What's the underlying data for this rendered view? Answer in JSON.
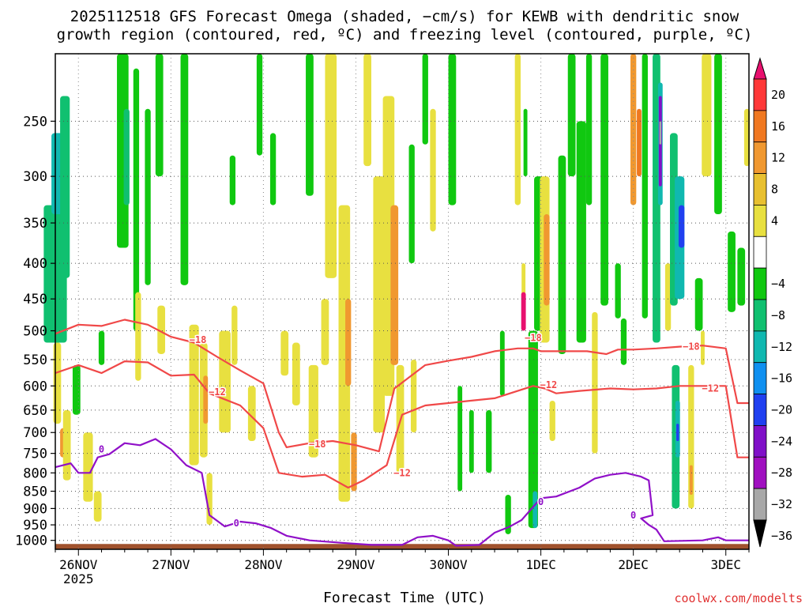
{
  "title": {
    "line1": "2025112518 GFS Forecast Omega (shaded, −cm/s) for KEWB with dendritic snow",
    "line2": "growth region (contoured, red, ºC) and freezing level (contoured, purple, ºC)"
  },
  "xlabel": "Forecast Time (UTC)",
  "credit": "coolwx.com/modelts",
  "chart_data": {
    "type": "heatmap",
    "x_unit": "forecast hours from 2025-11-25 18Z",
    "x_range": [
      0,
      180
    ],
    "y_unit": "hPa",
    "y_range": [
      1030,
      200
    ],
    "y_ticks": [
      250,
      300,
      350,
      400,
      450,
      500,
      550,
      600,
      650,
      700,
      750,
      800,
      850,
      900,
      950,
      1000
    ],
    "x_ticks": [
      {
        "hour": 6,
        "label": "26NOV",
        "sub": "2025"
      },
      {
        "hour": 30,
        "label": "27NOV",
        "sub": ""
      },
      {
        "hour": 54,
        "label": "28NOV",
        "sub": ""
      },
      {
        "hour": 78,
        "label": "29NOV",
        "sub": ""
      },
      {
        "hour": 102,
        "label": "30NOV",
        "sub": ""
      },
      {
        "hour": 126,
        "label": "1DEC",
        "sub": ""
      },
      {
        "hour": 150,
        "label": "2DEC",
        "sub": ""
      },
      {
        "hour": 174,
        "label": "3DEC",
        "sub": ""
      }
    ],
    "colorbar": {
      "labels": [
        "20",
        "16",
        "12",
        "8",
        "4",
        "−4",
        "−8",
        "−12",
        "−16",
        "−20",
        "−24",
        "−28",
        "−32",
        "−36"
      ],
      "colors": [
        "#e8106e",
        "#ff3838",
        "#f07820",
        "#f09830",
        "#e8c030",
        "#e8e040",
        "#ffffff",
        "#10c810",
        "#10c070",
        "#10b8b0",
        "#1090f0",
        "#2040f0",
        "#8010c8",
        "#a010c0",
        "#a8a8a8",
        "#000000"
      ]
    },
    "omega_cells": [
      {
        "h": 0.0,
        "w": 6,
        "p1": 330,
        "p2": 520,
        "v": -10
      },
      {
        "h": 0.5,
        "w": 3,
        "p1": 260,
        "p2": 340,
        "v": -14
      },
      {
        "h": 2.5,
        "w": 2.5,
        "p1": 230,
        "p2": 420,
        "v": -11
      },
      {
        "h": 0.5,
        "w": 2,
        "p1": 520,
        "p2": 680,
        "v": 5
      },
      {
        "h": 2.0,
        "w": 1.5,
        "p1": 690,
        "p2": 760,
        "v": 10
      },
      {
        "h": 3.0,
        "w": 2,
        "p1": 650,
        "p2": 820,
        "v": 5
      },
      {
        "h": 5.5,
        "w": 2,
        "p1": 560,
        "p2": 660,
        "v": -6
      },
      {
        "h": 8.5,
        "w": 2.5,
        "p1": 700,
        "p2": 880,
        "v": 5
      },
      {
        "h": 12.0,
        "w": 1.5,
        "p1": 500,
        "p2": 560,
        "v": -6
      },
      {
        "h": 11.0,
        "w": 2,
        "p1": 850,
        "p2": 940,
        "v": 5
      },
      {
        "h": 17.5,
        "w": 3,
        "p1": 200,
        "p2": 380,
        "v": -7
      },
      {
        "h": 18.5,
        "w": 1.5,
        "p1": 240,
        "p2": 330,
        "v": -11
      },
      {
        "h": 21.0,
        "w": 1.5,
        "p1": 210,
        "p2": 500,
        "v": -6
      },
      {
        "h": 21.5,
        "w": 1.5,
        "p1": 440,
        "p2": 590,
        "v": 5
      },
      {
        "h": 24.0,
        "w": 1.5,
        "p1": 240,
        "p2": 430,
        "v": -6
      },
      {
        "h": 27.0,
        "w": 2,
        "p1": 200,
        "p2": 300,
        "v": -6
      },
      {
        "h": 27.5,
        "w": 2,
        "p1": 460,
        "p2": 540,
        "v": 5
      },
      {
        "h": 33.5,
        "w": 2,
        "p1": 200,
        "p2": 430,
        "v": -6
      },
      {
        "h": 36.0,
        "w": 2.5,
        "p1": 490,
        "p2": 780,
        "v": 5
      },
      {
        "h": 38.5,
        "w": 2,
        "p1": 520,
        "p2": 760,
        "v": 6
      },
      {
        "h": 39.0,
        "w": 1.2,
        "p1": 580,
        "p2": 680,
        "v": 10
      },
      {
        "h": 40.0,
        "w": 1.5,
        "p1": 800,
        "p2": 950,
        "v": 5
      },
      {
        "h": 44.0,
        "w": 3,
        "p1": 500,
        "p2": 700,
        "v": 5
      },
      {
        "h": 46.5,
        "w": 1.5,
        "p1": 460,
        "p2": 560,
        "v": 5
      },
      {
        "h": 46.0,
        "w": 1.5,
        "p1": 280,
        "p2": 330,
        "v": -6
      },
      {
        "h": 51.0,
        "w": 2,
        "p1": 600,
        "p2": 720,
        "v": 5
      },
      {
        "h": 53.0,
        "w": 1.5,
        "p1": 200,
        "p2": 280,
        "v": -6
      },
      {
        "h": 56.5,
        "w": 1.5,
        "p1": 260,
        "p2": 330,
        "v": -6
      },
      {
        "h": 59.5,
        "w": 2,
        "p1": 500,
        "p2": 580,
        "v": 5
      },
      {
        "h": 62.5,
        "w": 2,
        "p1": 520,
        "p2": 640,
        "v": 5
      },
      {
        "h": 66.0,
        "w": 2,
        "p1": 200,
        "p2": 320,
        "v": -7
      },
      {
        "h": 67.0,
        "w": 2.5,
        "p1": 560,
        "p2": 760,
        "v": 5
      },
      {
        "h": 70.0,
        "w": 2,
        "p1": 450,
        "p2": 560,
        "v": 5
      },
      {
        "h": 71.5,
        "w": 3,
        "p1": 200,
        "p2": 420,
        "v": 5
      },
      {
        "h": 75.0,
        "w": 3,
        "p1": 330,
        "p2": 880,
        "v": 5
      },
      {
        "h": 76.0,
        "w": 1.5,
        "p1": 450,
        "p2": 600,
        "v": 9
      },
      {
        "h": 77.5,
        "w": 1.5,
        "p1": 700,
        "p2": 850,
        "v": 9
      },
      {
        "h": 81.0,
        "w": 2,
        "p1": 200,
        "p2": 290,
        "v": 5
      },
      {
        "h": 84.0,
        "w": 3,
        "p1": 300,
        "p2": 700,
        "v": 5
      },
      {
        "h": 86.5,
        "w": 3,
        "p1": 230,
        "p2": 620,
        "v": 6
      },
      {
        "h": 88.0,
        "w": 2,
        "p1": 330,
        "p2": 560,
        "v": 10
      },
      {
        "h": 89.5,
        "w": 2,
        "p1": 560,
        "p2": 800,
        "v": 6
      },
      {
        "h": 92.5,
        "w": 1.5,
        "p1": 270,
        "p2": 400,
        "v": -6
      },
      {
        "h": 93.0,
        "w": 1.5,
        "p1": 550,
        "p2": 700,
        "v": 5
      },
      {
        "h": 96.0,
        "w": 1.5,
        "p1": 200,
        "p2": 270,
        "v": -6
      },
      {
        "h": 98.0,
        "w": 1.5,
        "p1": 240,
        "p2": 360,
        "v": 5
      },
      {
        "h": 103.0,
        "w": 2,
        "p1": 200,
        "p2": 330,
        "v": -6
      },
      {
        "h": 105.0,
        "w": 1.2,
        "p1": 600,
        "p2": 850,
        "v": -6
      },
      {
        "h": 108.0,
        "w": 1.2,
        "p1": 650,
        "p2": 800,
        "v": -6
      },
      {
        "h": 112.5,
        "w": 1.5,
        "p1": 650,
        "p2": 800,
        "v": -6
      },
      {
        "h": 116.0,
        "w": 1.2,
        "p1": 500,
        "p2": 620,
        "v": -6
      },
      {
        "h": 117.5,
        "w": 1.5,
        "p1": 860,
        "p2": 980,
        "v": -6
      },
      {
        "h": 120.0,
        "w": 1.5,
        "p1": 200,
        "p2": 330,
        "v": 5
      },
      {
        "h": 121.5,
        "w": 1,
        "p1": 400,
        "p2": 480,
        "v": 5
      },
      {
        "h": 121.5,
        "w": 1.2,
        "p1": 440,
        "p2": 500,
        "v": 20
      },
      {
        "h": 122.0,
        "w": 1,
        "p1": 240,
        "p2": 300,
        "v": -6
      },
      {
        "h": 124.0,
        "w": 2.5,
        "p1": 500,
        "p2": 960,
        "v": -7
      },
      {
        "h": 124.5,
        "w": 1.2,
        "p1": 850,
        "p2": 960,
        "v": -12
      },
      {
        "h": 125.5,
        "w": 2.5,
        "p1": 300,
        "p2": 500,
        "v": -6
      },
      {
        "h": 127.0,
        "w": 2.5,
        "p1": 300,
        "p2": 520,
        "v": 6
      },
      {
        "h": 127.5,
        "w": 1.5,
        "p1": 340,
        "p2": 460,
        "v": 11
      },
      {
        "h": 129.0,
        "w": 1.5,
        "p1": 630,
        "p2": 720,
        "v": 5
      },
      {
        "h": 131.5,
        "w": 2,
        "p1": 280,
        "p2": 540,
        "v": -7
      },
      {
        "h": 134.0,
        "w": 2,
        "p1": 200,
        "p2": 300,
        "v": -6
      },
      {
        "h": 136.5,
        "w": 2.5,
        "p1": 250,
        "p2": 520,
        "v": -7
      },
      {
        "h": 138.5,
        "w": 1.5,
        "p1": 200,
        "p2": 330,
        "v": -6
      },
      {
        "h": 140.0,
        "w": 1.5,
        "p1": 470,
        "p2": 750,
        "v": 5
      },
      {
        "h": 142.5,
        "w": 2,
        "p1": 200,
        "p2": 460,
        "v": -7
      },
      {
        "h": 146.0,
        "w": 1.5,
        "p1": 400,
        "p2": 480,
        "v": -6
      },
      {
        "h": 147.5,
        "w": 1.5,
        "p1": 480,
        "p2": 560,
        "v": -6
      },
      {
        "h": 150.0,
        "w": 1.5,
        "p1": 200,
        "p2": 330,
        "v": 9
      },
      {
        "h": 151.5,
        "w": 1.2,
        "p1": 240,
        "p2": 300,
        "v": 12
      },
      {
        "h": 153.0,
        "w": 1.5,
        "p1": 200,
        "p2": 480,
        "v": -7
      },
      {
        "h": 156.0,
        "w": 2,
        "p1": 200,
        "p2": 520,
        "v": -9
      },
      {
        "h": 157.0,
        "w": 1.2,
        "p1": 220,
        "p2": 330,
        "v": -13
      },
      {
        "h": 157.0,
        "w": 0.8,
        "p1": 230,
        "p2": 310,
        "v": -27
      },
      {
        "h": 157.0,
        "w": 0.5,
        "p1": 250,
        "p2": 270,
        "v": -33
      },
      {
        "h": 159.0,
        "w": 1.5,
        "p1": 400,
        "p2": 500,
        "v": 5
      },
      {
        "h": 160.5,
        "w": 2,
        "p1": 260,
        "p2": 460,
        "v": -8
      },
      {
        "h": 162.0,
        "w": 2.5,
        "p1": 300,
        "p2": 450,
        "v": -13
      },
      {
        "h": 162.5,
        "w": 1.5,
        "p1": 330,
        "p2": 380,
        "v": -22
      },
      {
        "h": 161.0,
        "w": 2,
        "p1": 560,
        "p2": 900,
        "v": -9
      },
      {
        "h": 161.5,
        "w": 1.2,
        "p1": 630,
        "p2": 760,
        "v": -14
      },
      {
        "h": 161.5,
        "w": 0.7,
        "p1": 680,
        "p2": 720,
        "v": -22
      },
      {
        "h": 165.0,
        "w": 1.5,
        "p1": 560,
        "p2": 900,
        "v": 5
      },
      {
        "h": 165.0,
        "w": 0.8,
        "p1": 780,
        "p2": 860,
        "v": 10
      },
      {
        "h": 167.0,
        "w": 2,
        "p1": 420,
        "p2": 500,
        "v": -6
      },
      {
        "h": 169.0,
        "w": 2.5,
        "p1": 200,
        "p2": 300,
        "v": 5
      },
      {
        "h": 172.0,
        "w": 2,
        "p1": 200,
        "p2": 340,
        "v": -6
      },
      {
        "h": 175.5,
        "w": 2,
        "p1": 360,
        "p2": 470,
        "v": -6
      },
      {
        "h": 178.0,
        "w": 2,
        "p1": 380,
        "p2": 460,
        "v": -6
      },
      {
        "h": 179.5,
        "w": 1.5,
        "p1": 240,
        "p2": 290,
        "v": 5
      },
      {
        "h": 168.0,
        "w": 1,
        "p1": 500,
        "p2": 560,
        "v": 5
      }
    ],
    "contours": [
      {
        "name": "-18 isotherm",
        "label": "−18",
        "color": "#f04848",
        "points": [
          [
            0,
            505
          ],
          [
            6,
            490
          ],
          [
            12,
            492
          ],
          [
            18,
            482
          ],
          [
            24,
            490
          ],
          [
            30,
            510
          ],
          [
            36,
            520
          ],
          [
            42,
            545
          ],
          [
            48,
            570
          ],
          [
            54,
            595
          ],
          [
            58,
            700
          ],
          [
            60,
            735
          ],
          [
            66,
            725
          ],
          [
            72,
            720
          ],
          [
            78,
            730
          ],
          [
            84,
            745
          ],
          [
            88,
            605
          ],
          [
            96,
            560
          ],
          [
            102,
            552
          ],
          [
            108,
            545
          ],
          [
            114,
            535
          ],
          [
            120,
            530
          ],
          [
            124,
            530
          ],
          [
            126,
            535
          ],
          [
            132,
            535
          ],
          [
            138,
            535
          ],
          [
            143,
            540
          ],
          [
            146,
            532
          ],
          [
            150,
            532
          ],
          [
            156,
            530
          ],
          [
            162,
            527
          ],
          [
            168,
            525
          ],
          [
            174,
            530
          ],
          [
            177,
            635
          ],
          [
            180,
            635
          ]
        ],
        "labels": [
          {
            "h": 37,
            "p": 515
          },
          {
            "h": 68,
            "p": 728
          },
          {
            "h": 124,
            "p": 512
          },
          {
            "h": 165,
            "p": 527
          }
        ]
      },
      {
        "name": "-12 isotherm",
        "label": "−12",
        "color": "#f04848",
        "points": [
          [
            0,
            575
          ],
          [
            6,
            560
          ],
          [
            12,
            575
          ],
          [
            18,
            553
          ],
          [
            24,
            555
          ],
          [
            30,
            580
          ],
          [
            36,
            578
          ],
          [
            40,
            615
          ],
          [
            48,
            640
          ],
          [
            54,
            690
          ],
          [
            58,
            800
          ],
          [
            64,
            810
          ],
          [
            70,
            805
          ],
          [
            76,
            840
          ],
          [
            80,
            820
          ],
          [
            86,
            780
          ],
          [
            90,
            660
          ],
          [
            96,
            640
          ],
          [
            102,
            635
          ],
          [
            108,
            630
          ],
          [
            114,
            625
          ],
          [
            120,
            610
          ],
          [
            124,
            600
          ],
          [
            127,
            605
          ],
          [
            130,
            615
          ],
          [
            136,
            610
          ],
          [
            144,
            605
          ],
          [
            150,
            607
          ],
          [
            156,
            605
          ],
          [
            162,
            600
          ],
          [
            168,
            600
          ],
          [
            174,
            600
          ],
          [
            177,
            760
          ],
          [
            180,
            760
          ]
        ],
        "labels": [
          {
            "h": 42,
            "p": 612
          },
          {
            "h": 90,
            "p": 800
          },
          {
            "h": 128,
            "p": 598
          },
          {
            "h": 170,
            "p": 605
          }
        ]
      },
      {
        "name": "freezing level",
        "label": "0",
        "color": "#9010c8",
        "points": [
          [
            0,
            785
          ],
          [
            4,
            775
          ],
          [
            6,
            800
          ],
          [
            9,
            800
          ],
          [
            11,
            760
          ],
          [
            14,
            752
          ],
          [
            18,
            725
          ],
          [
            22,
            730
          ],
          [
            26,
            715
          ],
          [
            30,
            740
          ],
          [
            34,
            780
          ],
          [
            38,
            800
          ],
          [
            40,
            920
          ],
          [
            44,
            955
          ],
          [
            48,
            940
          ],
          [
            52,
            945
          ],
          [
            56,
            960
          ],
          [
            60,
            985
          ],
          [
            66,
            1000
          ],
          [
            74,
            1008
          ],
          [
            82,
            1015
          ],
          [
            90,
            1015
          ],
          [
            94,
            990
          ],
          [
            98,
            985
          ],
          [
            102,
            1000
          ],
          [
            104,
            1018
          ],
          [
            110,
            1015
          ],
          [
            114,
            975
          ],
          [
            118,
            955
          ],
          [
            121,
            935
          ],
          [
            124,
            895
          ],
          [
            126,
            870
          ],
          [
            130,
            865
          ],
          [
            136,
            840
          ],
          [
            140,
            815
          ],
          [
            144,
            805
          ],
          [
            148,
            800
          ],
          [
            152,
            810
          ],
          [
            154,
            820
          ],
          [
            155,
            920
          ],
          [
            152,
            930
          ],
          [
            154,
            950
          ],
          [
            156,
            965
          ],
          [
            158,
            1003
          ],
          [
            168,
            1000
          ],
          [
            172,
            990
          ],
          [
            174,
            1000
          ],
          [
            180,
            1000
          ]
        ],
        "labels": [
          {
            "h": 12,
            "p": 740
          },
          {
            "h": 47,
            "p": 945
          },
          {
            "h": 126,
            "p": 880
          },
          {
            "h": 150,
            "p": 920
          }
        ]
      }
    ]
  }
}
